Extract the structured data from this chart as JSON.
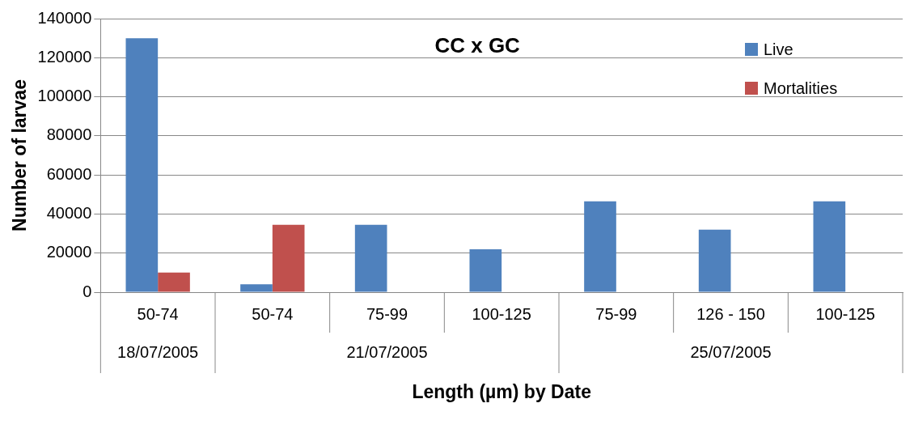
{
  "chart_data": {
    "type": "bar",
    "title": "CC x GC",
    "xlabel": "Length (µm) by Date",
    "ylabel": "Number of larvae",
    "categories": [
      "50-74",
      "50-74",
      "75-99",
      "100-125",
      "75-99",
      "126 - 150",
      "100-125"
    ],
    "series": [
      {
        "name": "Live",
        "color": "#4f81bd",
        "values": [
          130000,
          4000,
          34500,
          22000,
          46500,
          32000,
          46500
        ]
      },
      {
        "name": "Mortalities",
        "color": "#c0504d",
        "values": [
          10000,
          34500,
          0,
          0,
          0,
          0,
          0
        ]
      }
    ],
    "annotations": [
      "18/07/2005",
      "21/07/2005",
      "25/07/2005"
    ],
    "ylim": [
      0,
      140000
    ],
    "yticks": [
      0,
      20000,
      40000,
      60000,
      80000,
      100000,
      120000,
      140000
    ],
    "grid": "y",
    "legend": "top right"
  }
}
